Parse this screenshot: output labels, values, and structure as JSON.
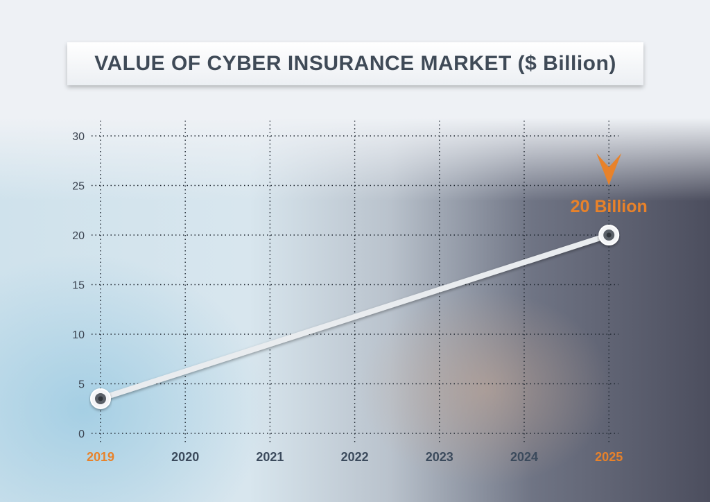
{
  "title": "VALUE OF CYBER INSURANCE MARKET ($ Billion)",
  "chart_data": {
    "type": "line",
    "title": "VALUE OF CYBER INSURANCE MARKET ($ Billion)",
    "categories": [
      "2019",
      "2020",
      "2021",
      "2022",
      "2023",
      "2024",
      "2025"
    ],
    "highlighted_categories": [
      "2019",
      "2025"
    ],
    "series": [
      {
        "points": [
          {
            "x": "2019",
            "y": 3.5
          },
          {
            "x": "2025",
            "y": 20
          }
        ]
      }
    ],
    "ylim": [
      0,
      30
    ],
    "yticks": [
      0,
      5,
      10,
      15,
      20,
      25,
      30
    ],
    "grid": true,
    "annotation": {
      "x": "2025",
      "y": 20,
      "text": "20 Billion"
    },
    "colors": {
      "highlight": "#e8822a",
      "line": "#e9ecef",
      "text": "#3b4a5c"
    }
  }
}
